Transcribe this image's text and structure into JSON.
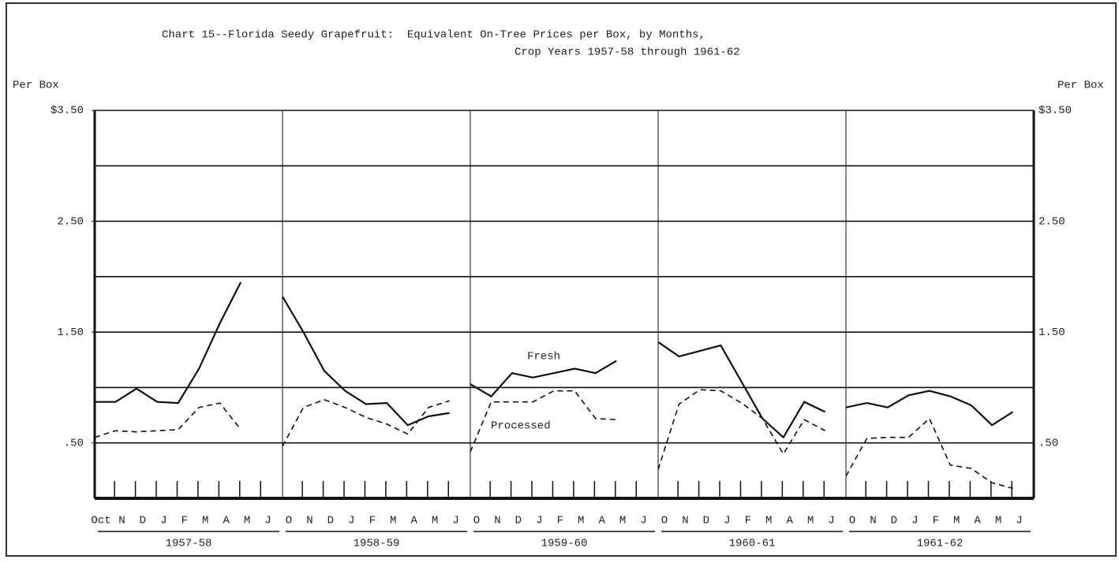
{
  "chart_data": {
    "type": "line",
    "title": "Chart 15--Florida Seedy Grapefruit:  Equivalent On-Tree Prices per Box, by Months,",
    "subtitle": "Crop Years 1957-58 through 1961-62",
    "y_label": "Per Box",
    "categories": [
      "Oct",
      "N",
      "D",
      "J",
      "F",
      "M",
      "A",
      "M",
      "J",
      "O",
      "N",
      "D",
      "J",
      "F",
      "M",
      "A",
      "M",
      "J",
      "O",
      "N",
      "D",
      "J",
      "F",
      "M",
      "A",
      "M",
      "J",
      "O",
      "N",
      "D",
      "J",
      "F",
      "M",
      "A",
      "M",
      "J",
      "O",
      "N",
      "D",
      "J",
      "F",
      "M",
      "A",
      "M",
      "J"
    ],
    "groups": [
      "1957-58",
      "1958-59",
      "1959-60",
      "1960-61",
      "1961-62"
    ],
    "series": [
      {
        "name": "Fresh",
        "color": "#111111",
        "dash": false,
        "values": [
          0.87,
          0.87,
          0.99,
          0.87,
          0.86,
          1.17,
          1.58,
          1.95,
          null,
          1.82,
          1.5,
          1.15,
          0.97,
          0.85,
          0.86,
          0.66,
          0.74,
          0.77,
          1.03,
          0.92,
          1.13,
          1.09,
          1.13,
          1.17,
          1.13,
          1.24,
          null,
          1.41,
          1.28,
          1.33,
          1.38,
          1.05,
          0.72,
          0.55,
          0.87,
          0.78,
          0.82,
          0.86,
          0.82,
          0.93,
          0.97,
          0.92,
          0.84,
          0.66,
          0.78
        ]
      },
      {
        "name": "Processed",
        "color": "#111111",
        "dash": true,
        "values": [
          0.55,
          0.61,
          0.6,
          0.61,
          0.62,
          0.82,
          0.86,
          0.62,
          null,
          0.47,
          0.82,
          0.89,
          0.82,
          0.73,
          0.67,
          0.58,
          0.82,
          0.88,
          0.42,
          0.87,
          0.87,
          0.87,
          0.97,
          0.97,
          0.72,
          0.71,
          null,
          0.26,
          0.85,
          0.98,
          0.97,
          0.86,
          0.72,
          0.4,
          0.71,
          0.61,
          0.2,
          0.54,
          0.55,
          0.55,
          0.72,
          0.3,
          0.27,
          0.14,
          0.09
        ]
      }
    ],
    "ylim": [
      0,
      3.5
    ],
    "yticks": [
      {
        "value": 3.5,
        "label": "$3.50"
      },
      {
        "value": 2.5,
        "label": "2.50"
      },
      {
        "value": 1.5,
        "label": "1.50"
      },
      {
        "value": 0.5,
        "label": ".50"
      }
    ],
    "ygrid": [
      0.5,
      1,
      1.5,
      2,
      2.5,
      3,
      3.5
    ],
    "grid": true
  }
}
